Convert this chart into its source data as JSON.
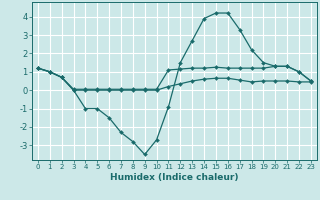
{
  "xlabel": "Humidex (Indice chaleur)",
  "bg_color": "#cce8e8",
  "grid_color": "#ffffff",
  "line_color": "#1a6b6b",
  "xlim": [
    -0.5,
    23.5
  ],
  "ylim": [
    -3.8,
    4.8
  ],
  "yticks": [
    -3,
    -2,
    -1,
    0,
    1,
    2,
    3,
    4
  ],
  "xticks": [
    0,
    1,
    2,
    3,
    4,
    5,
    6,
    7,
    8,
    9,
    10,
    11,
    12,
    13,
    14,
    15,
    16,
    17,
    18,
    19,
    20,
    21,
    22,
    23
  ],
  "line1_y": [
    1.2,
    1.0,
    0.7,
    0.0,
    -1.0,
    -1.0,
    -1.5,
    -2.3,
    -2.8,
    -3.5,
    -2.7,
    -0.9,
    1.5,
    2.7,
    3.9,
    4.2,
    4.2,
    3.3,
    2.2,
    1.5,
    1.3,
    1.3,
    1.0,
    0.5
  ],
  "line2_y": [
    1.2,
    1.0,
    0.7,
    0.05,
    0.05,
    0.05,
    0.05,
    0.05,
    0.05,
    0.05,
    0.05,
    1.1,
    1.15,
    1.2,
    1.2,
    1.25,
    1.2,
    1.2,
    1.2,
    1.2,
    1.3,
    1.3,
    1.0,
    0.5
  ],
  "line3_y": [
    1.2,
    1.0,
    0.7,
    0.0,
    0.0,
    0.0,
    0.0,
    0.0,
    0.0,
    0.0,
    0.0,
    0.2,
    0.35,
    0.5,
    0.6,
    0.65,
    0.65,
    0.55,
    0.45,
    0.5,
    0.5,
    0.5,
    0.45,
    0.45
  ]
}
